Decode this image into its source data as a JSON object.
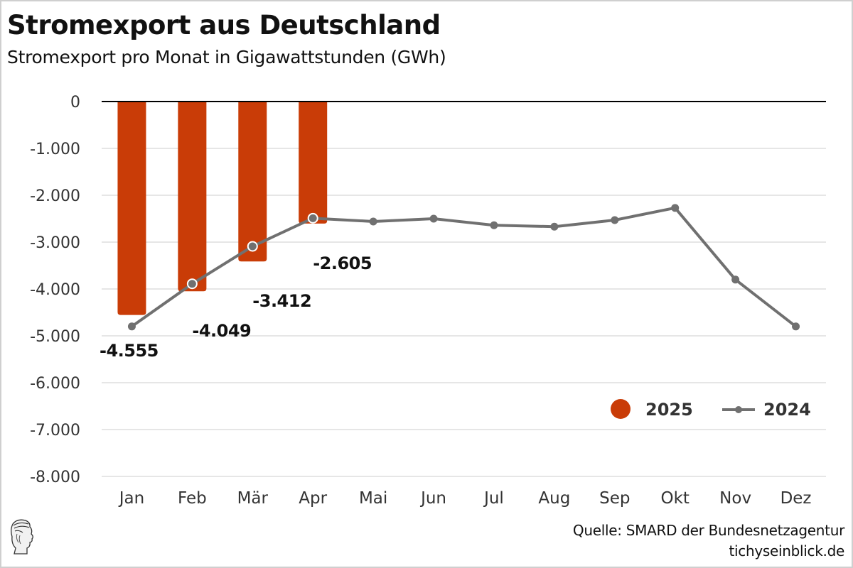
{
  "header": {
    "title": "Stromexport aus Deutschland",
    "subtitle": "Stromexport pro Monat in Gigawattstunden (GWh)"
  },
  "footer": {
    "source": "Quelle: SMARD der Bundesnetzagentur",
    "site": "tichyseinblick.de",
    "logo_icon": "hermes-head-logo-icon"
  },
  "colors": {
    "bar_2025": "#c93c07",
    "line_2024": "#707070",
    "grid": "#e6e6e6",
    "zero_line": "#000000",
    "text": "#333333"
  },
  "chart_data": {
    "type": "bar",
    "title": "Stromexport aus Deutschland",
    "subtitle": "Stromexport pro Monat in Gigawattstunden (GWh)",
    "xlabel": "",
    "ylabel": "",
    "categories": [
      "Jan",
      "Feb",
      "Mär",
      "Apr",
      "Mai",
      "Jun",
      "Jul",
      "Aug",
      "Sep",
      "Okt",
      "Nov",
      "Dez"
    ],
    "ylim": [
      -8000,
      0
    ],
    "yticks": [
      0,
      -1000,
      -2000,
      -3000,
      -4000,
      -5000,
      -6000,
      -7000,
      -8000
    ],
    "ytick_labels": [
      "0",
      "-1.000",
      "-2.000",
      "-3.000",
      "-4.000",
      "-5.000",
      "-6.000",
      "-7.000",
      "-8.000"
    ],
    "grid": true,
    "legend": {
      "position": "bottom-right",
      "entries": [
        "2025",
        "2024"
      ]
    },
    "series": [
      {
        "name": "2025",
        "type": "bar",
        "values": [
          -4555,
          -4049,
          -3412,
          -2605,
          null,
          null,
          null,
          null,
          null,
          null,
          null,
          null
        ],
        "labels": [
          "-4.555",
          "-4.049",
          "-3.412",
          "-2.605"
        ]
      },
      {
        "name": "2024",
        "type": "line",
        "values": [
          -4800,
          -3890,
          -3090,
          -2490,
          -2560,
          -2500,
          -2640,
          -2670,
          -2530,
          -2270,
          -3800,
          -4800
        ]
      }
    ]
  }
}
